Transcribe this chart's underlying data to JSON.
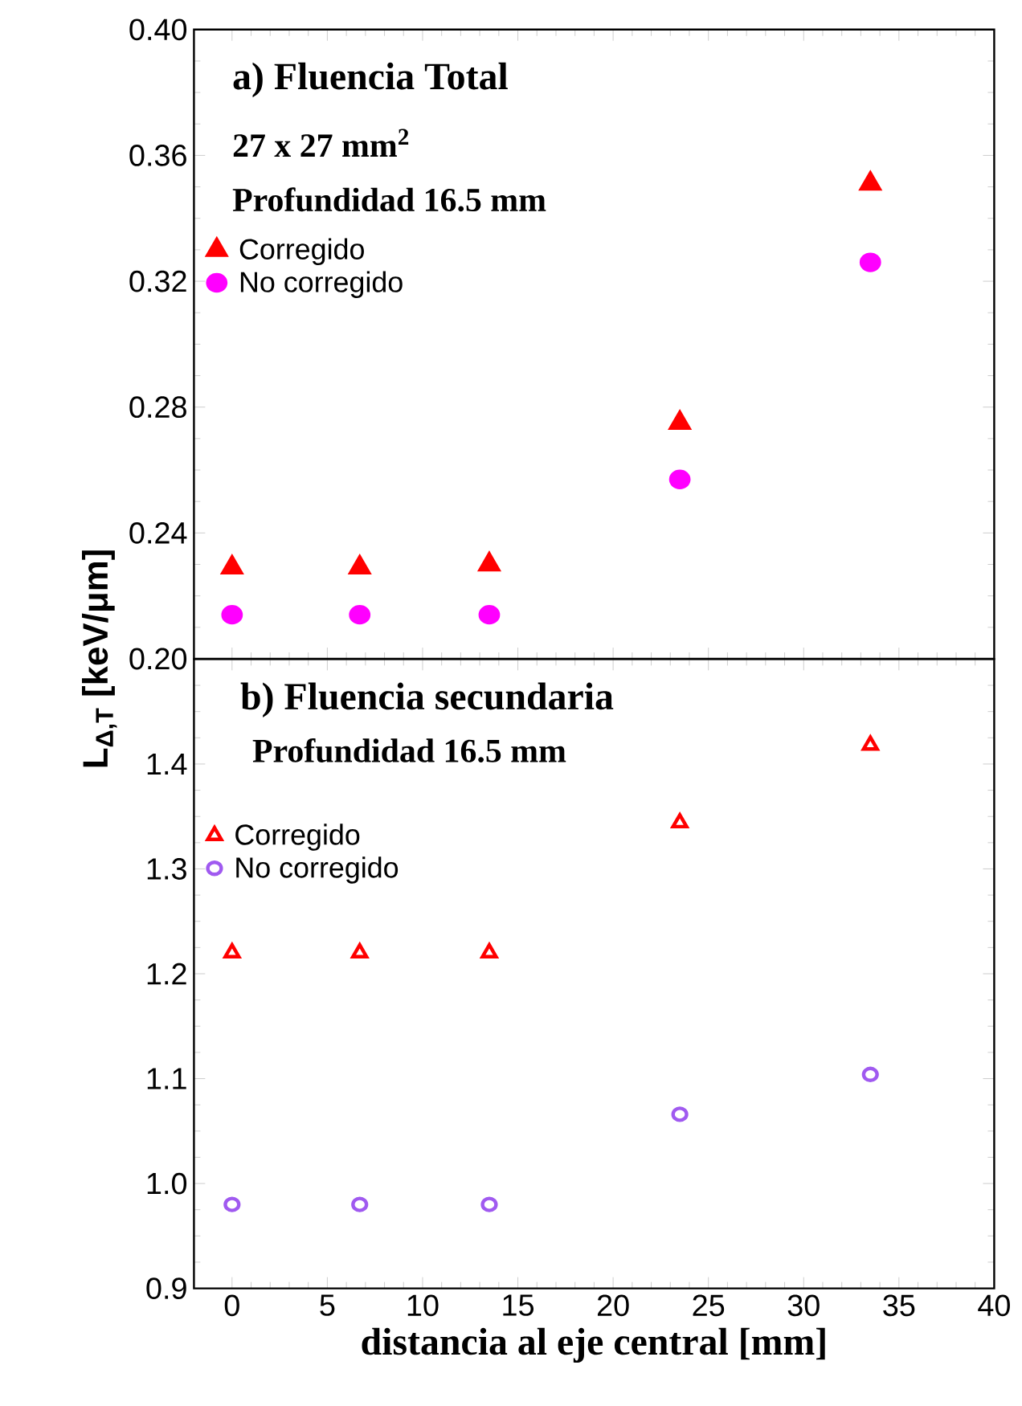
{
  "chart_data": [
    {
      "type": "scatter",
      "title": "a) Fluencia Total",
      "annotations": [
        "27 x 27 mm$^{2}$",
        "Profundidad 16.5 mm"
      ],
      "ylabel": "L$_{Δ,T}$ [keV/μm]",
      "x": [
        0,
        6.7,
        13.5,
        23.5,
        33.5
      ],
      "series": [
        {
          "name": "Corregido",
          "color": "#ff0000",
          "marker": "triangle",
          "values": [
            0.229,
            0.229,
            0.23,
            0.275,
            0.351
          ]
        },
        {
          "name": "No corregido",
          "color": "#ff00ff",
          "marker": "circle",
          "values": [
            0.214,
            0.214,
            0.214,
            0.257,
            0.326
          ]
        }
      ],
      "xlim": [
        -2,
        40
      ],
      "xticks": [
        0,
        5,
        10,
        15,
        20,
        25,
        30,
        35,
        40
      ],
      "ylim": [
        0.2,
        0.4
      ],
      "yticks": [
        {
          "value": 0.2,
          "label": "0.20"
        },
        0.24,
        0.28,
        0.32,
        0.36,
        {
          "value": 0.4,
          "label": "0.40"
        }
      ],
      "tick_labels": "y",
      "legend": "top left",
      "grid": false
    },
    {
      "type": "scatter",
      "title": "b) Fluencia secundaria",
      "annotations": [
        "Profundidad 16.5 mm"
      ],
      "xlabel": "distancia al eje central [mm]",
      "x": [
        0,
        6.7,
        13.5,
        23.5,
        33.5
      ],
      "series": [
        {
          "name": "Corregido",
          "color": "#ff0000",
          "marker": "triangle",
          "values": [
            1.22,
            1.22,
            1.22,
            1.344,
            1.418
          ]
        },
        {
          "name": "No corregido",
          "color": "#a05af0",
          "marker": "circle",
          "values": [
            0.98,
            0.98,
            0.98,
            1.066,
            1.104
          ]
        }
      ],
      "xlim": [
        -2,
        40
      ],
      "xticks": [
        0,
        5,
        10,
        15,
        20,
        25,
        30,
        35,
        40
      ],
      "ylim": [
        0.9,
        1.5
      ],
      "yticks": [
        0.9,
        {
          "value": 1.0,
          "label": "1.0"
        },
        1.1,
        1.2,
        1.3,
        1.4,
        {
          "value": 1.5,
          "label": null
        }
      ],
      "legend": "top left",
      "grid": false
    }
  ]
}
